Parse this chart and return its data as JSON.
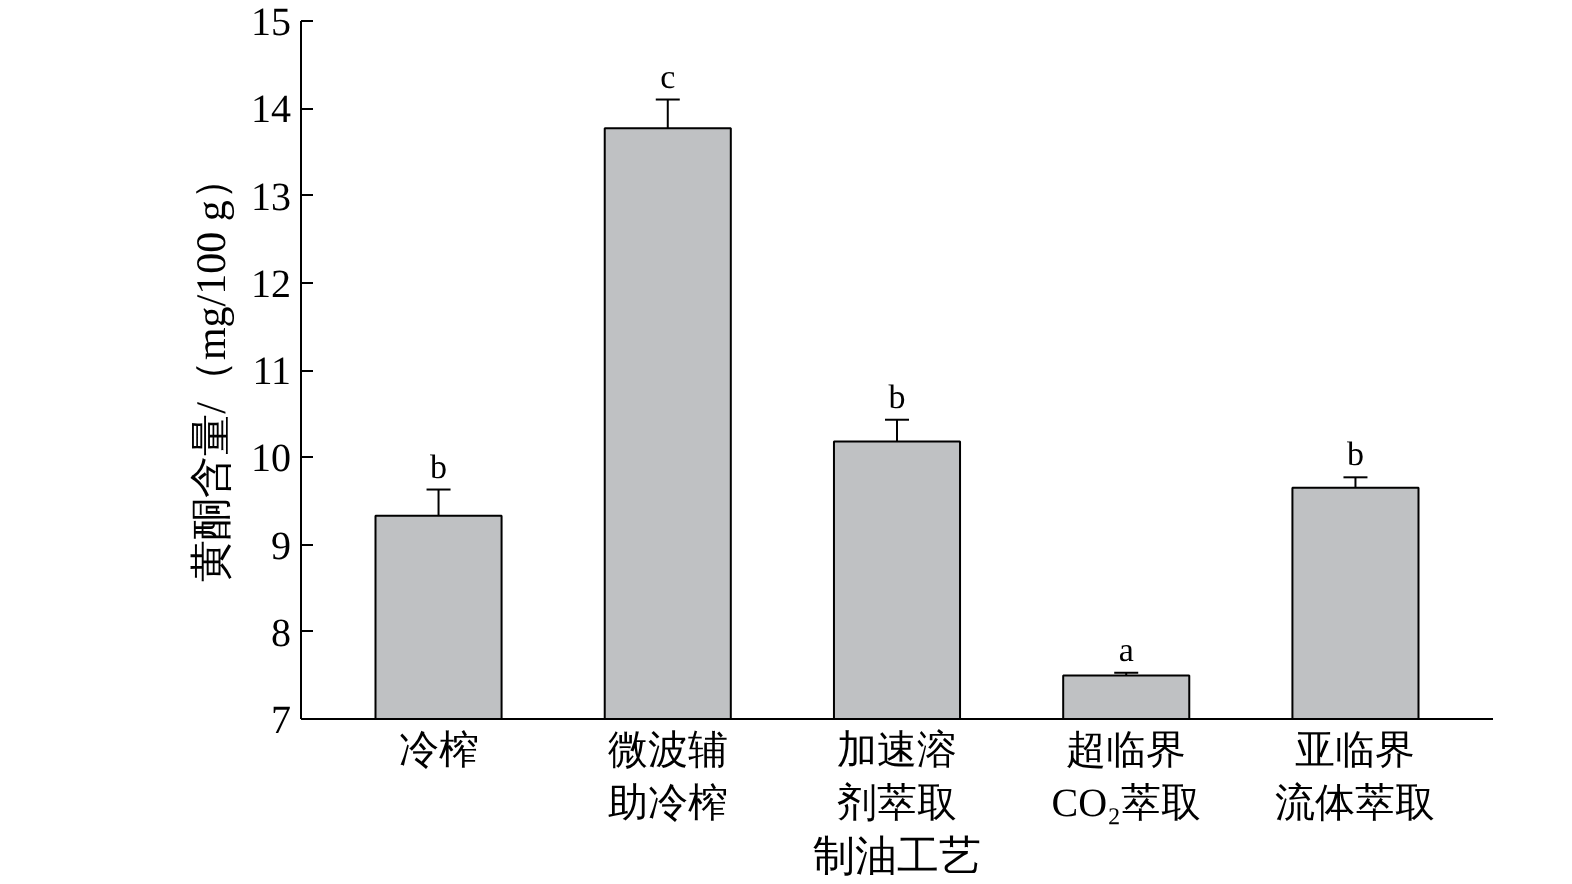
{
  "chart_data": {
    "type": "bar",
    "xlabel": "制油工艺",
    "ylabel": "黄酮含量/（mg/100 g）",
    "categories": [
      "冷榨",
      "微波辅助冷榨",
      "加速溶剂萃取",
      "超临界\nCO₂萃取",
      "亚临界流体萃取"
    ],
    "values": [
      9.33,
      13.77,
      10.18,
      7.5,
      9.65
    ],
    "errors": [
      0.3,
      0.33,
      0.25,
      0.03,
      0.12
    ],
    "color": "#bfc1c3",
    "ylim": [
      7,
      15
    ],
    "yticks": [
      7,
      8,
      9,
      10,
      11,
      12,
      13,
      14,
      15
    ],
    "grid": false,
    "annotations": [
      {
        "text": "b",
        "x": "冷榨",
        "y": 9.63
      },
      {
        "text": "c",
        "x": "微波辅助冷榨",
        "y": 14.1
      },
      {
        "text": "b",
        "x": "加速溶剂萃取",
        "y": 10.43
      },
      {
        "text": "a",
        "x": "超临界\nCO₂萃取",
        "y": 7.53
      },
      {
        "text": "b",
        "x": "亚临界流体萃取",
        "y": 9.77
      }
    ]
  }
}
